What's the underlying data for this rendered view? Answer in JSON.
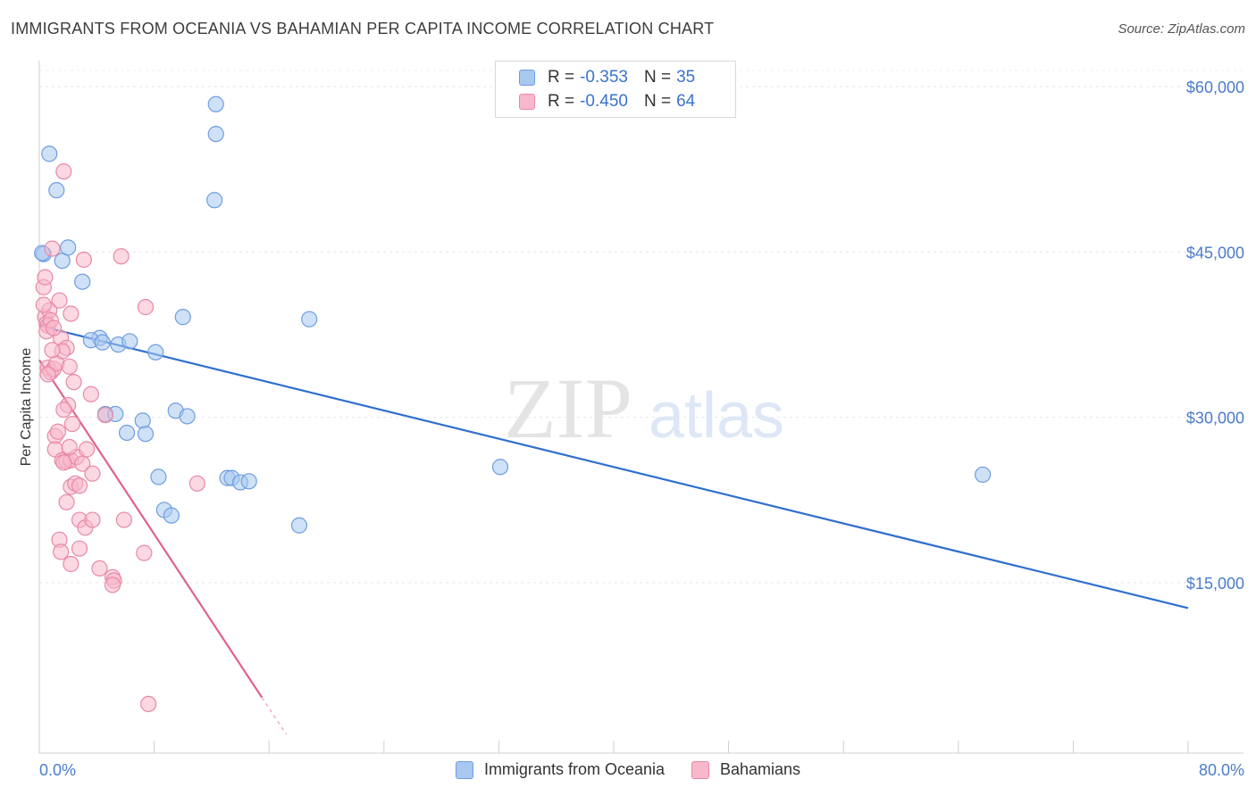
{
  "title": "IMMIGRANTS FROM OCEANIA VS BAHAMIAN PER CAPITA INCOME CORRELATION CHART",
  "source": "Source: ZipAtlas.com",
  "watermark": {
    "zip": "ZIP",
    "atlas": "atlas"
  },
  "legend": {
    "rows": [
      {
        "r_label": "R =",
        "r_value": "-0.353",
        "n_label": "N =",
        "n_value": "35",
        "color": "#a8c8f0",
        "border": "#6d9de0"
      },
      {
        "r_label": "R =",
        "r_value": "-0.450",
        "n_label": "N =",
        "n_value": "64",
        "color": "#f7b8cb",
        "border": "#e889a6"
      }
    ]
  },
  "bottom_legend": [
    "Immigrants from Oceania",
    "Bahamians"
  ],
  "chart_data": {
    "type": "scatter",
    "title": "IMMIGRANTS FROM OCEANIA VS BAHAMIAN PER CAPITA INCOME CORRELATION CHART",
    "xlabel": "",
    "ylabel": "Per Capita Income",
    "xlim": [
      0,
      80
    ],
    "ylim": [
      0,
      62000
    ],
    "x_tick_labels": [
      "0.0%",
      "80.0%"
    ],
    "y_ticks": [
      15000,
      30000,
      45000,
      60000
    ],
    "y_tick_labels": [
      "$15,000",
      "$30,000",
      "$45,000",
      "$60,000"
    ],
    "series": [
      {
        "name": "Immigrants from Oceania",
        "color": "#a8c8f0",
        "edge": "#6d9de0",
        "trend": {
          "x": [
            0,
            80
          ],
          "y": [
            38300,
            12700
          ],
          "color": "#2f6fce"
        },
        "points": [
          [
            0.3,
            44800
          ],
          [
            0.7,
            53900
          ],
          [
            1.2,
            50600
          ],
          [
            1.6,
            44200
          ],
          [
            2.0,
            45400
          ],
          [
            3.0,
            42300
          ],
          [
            4.2,
            37200
          ],
          [
            3.6,
            37000
          ],
          [
            5.5,
            36600
          ],
          [
            4.4,
            36800
          ],
          [
            6.3,
            36900
          ],
          [
            8.1,
            35900
          ],
          [
            10.0,
            39100
          ],
          [
            12.3,
            55700
          ],
          [
            12.2,
            49700
          ],
          [
            12.3,
            58400
          ],
          [
            18.8,
            38900
          ],
          [
            4.6,
            30300
          ],
          [
            5.3,
            30300
          ],
          [
            7.2,
            29700
          ],
          [
            6.1,
            28600
          ],
          [
            7.4,
            28500
          ],
          [
            9.5,
            30600
          ],
          [
            10.3,
            30100
          ],
          [
            8.3,
            24600
          ],
          [
            13.1,
            24500
          ],
          [
            13.4,
            24500
          ],
          [
            14.0,
            24100
          ],
          [
            14.6,
            24200
          ],
          [
            8.7,
            21600
          ],
          [
            9.2,
            21100
          ],
          [
            18.1,
            20200
          ],
          [
            32.1,
            25500
          ],
          [
            65.7,
            24800
          ],
          [
            0.2,
            44900
          ]
        ]
      },
      {
        "name": "Bahamians",
        "color": "#f7b8cb",
        "edge": "#e889a6",
        "trend": {
          "x": [
            0,
            15.5
          ],
          "y": [
            35200,
            4600
          ],
          "color": "#e0628c",
          "dashed_extension_to_x": 17.2
        },
        "points": [
          [
            0.3,
            41800
          ],
          [
            0.4,
            39100
          ],
          [
            0.5,
            38500
          ],
          [
            0.6,
            38300
          ],
          [
            0.7,
            39700
          ],
          [
            0.5,
            37800
          ],
          [
            0.8,
            38800
          ],
          [
            0.4,
            42700
          ],
          [
            0.6,
            34500
          ],
          [
            0.8,
            34100
          ],
          [
            1.0,
            34400
          ],
          [
            1.2,
            34900
          ],
          [
            0.9,
            45300
          ],
          [
            1.7,
            52300
          ],
          [
            1.5,
            37200
          ],
          [
            1.9,
            36300
          ],
          [
            1.6,
            36000
          ],
          [
            2.1,
            34600
          ],
          [
            2.2,
            39400
          ],
          [
            2.4,
            33200
          ],
          [
            2.0,
            31100
          ],
          [
            1.7,
            30700
          ],
          [
            1.1,
            28300
          ],
          [
            1.3,
            28700
          ],
          [
            1.1,
            27100
          ],
          [
            1.6,
            26100
          ],
          [
            1.9,
            26000
          ],
          [
            2.2,
            26100
          ],
          [
            2.6,
            26400
          ],
          [
            3.0,
            25800
          ],
          [
            3.3,
            27100
          ],
          [
            1.7,
            25900
          ],
          [
            2.2,
            23700
          ],
          [
            2.5,
            24000
          ],
          [
            2.8,
            23800
          ],
          [
            3.7,
            24900
          ],
          [
            3.6,
            32100
          ],
          [
            1.9,
            22300
          ],
          [
            2.8,
            20700
          ],
          [
            3.2,
            20000
          ],
          [
            3.7,
            20700
          ],
          [
            5.9,
            20700
          ],
          [
            1.4,
            18900
          ],
          [
            1.5,
            17800
          ],
          [
            2.8,
            18100
          ],
          [
            7.3,
            17700
          ],
          [
            2.2,
            16700
          ],
          [
            4.2,
            16300
          ],
          [
            5.1,
            15500
          ],
          [
            5.2,
            15200
          ],
          [
            5.1,
            14800
          ],
          [
            3.1,
            44300
          ],
          [
            5.7,
            44600
          ],
          [
            7.4,
            40000
          ],
          [
            11.0,
            24000
          ],
          [
            7.6,
            4000
          ],
          [
            0.3,
            40200
          ],
          [
            0.6,
            33900
          ],
          [
            1.4,
            40600
          ],
          [
            4.6,
            30200
          ],
          [
            2.3,
            29400
          ],
          [
            0.9,
            36100
          ],
          [
            1.0,
            38100
          ],
          [
            2.1,
            27300
          ]
        ]
      }
    ]
  }
}
